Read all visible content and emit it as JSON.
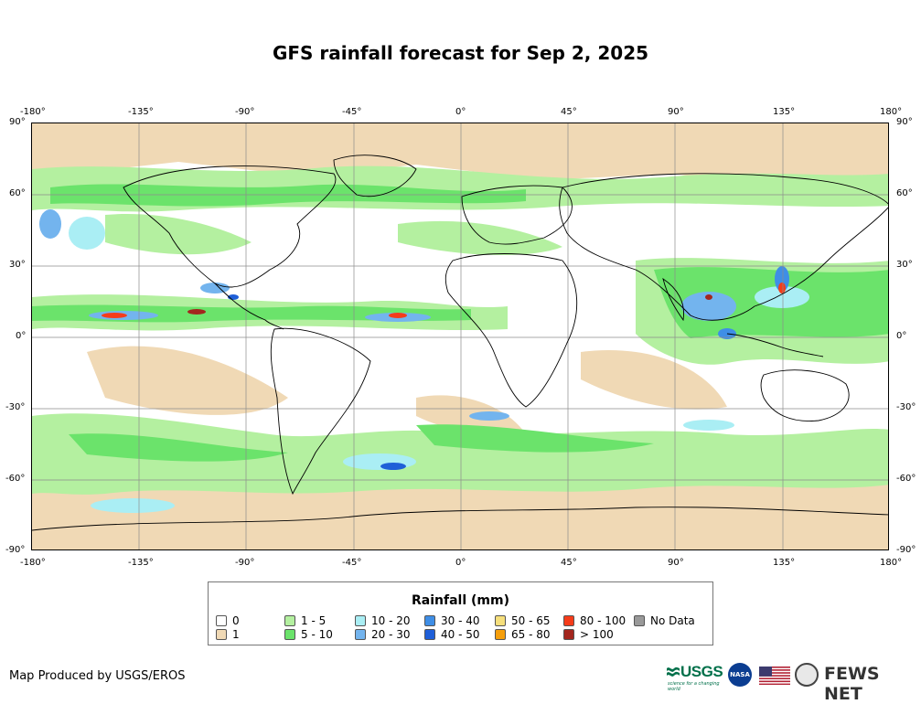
{
  "title": "GFS rainfall forecast for Sep 2, 2025",
  "map": {
    "lon_ticks": [
      "-180°",
      "-135°",
      "-90°",
      "-45°",
      "0°",
      "45°",
      "90°",
      "135°",
      "180°"
    ],
    "lat_ticks": [
      "90°",
      "60°",
      "30°",
      "0°",
      "-30°",
      "-60°",
      "-90°"
    ],
    "extent": {
      "lon": [
        -180,
        180
      ],
      "lat": [
        -90,
        90
      ]
    },
    "graticule_step_deg": 45,
    "graticule_lat_step_deg": 30
  },
  "legend": {
    "title": "Rainfall (mm)",
    "items": [
      {
        "label": "0",
        "color": "#ffffff"
      },
      {
        "label": "1",
        "color": "#f0d9b5"
      },
      {
        "label": "1 - 5",
        "color": "#b4f0a0"
      },
      {
        "label": "5 - 10",
        "color": "#6be36b"
      },
      {
        "label": "10 - 20",
        "color": "#aaeef4"
      },
      {
        "label": "20 - 30",
        "color": "#73b4ee"
      },
      {
        "label": "30 - 40",
        "color": "#3f8ee6"
      },
      {
        "label": "40 - 50",
        "color": "#1f5fd8"
      },
      {
        "label": "50 - 65",
        "color": "#f6df7c"
      },
      {
        "label": "65 - 80",
        "color": "#f59e0b"
      },
      {
        "label": "80 - 100",
        "color": "#f53c1a"
      },
      {
        "label": "> 100",
        "color": "#a3261e"
      },
      {
        "label": "No Data",
        "color": "#999999"
      }
    ]
  },
  "credit": "Map Produced by USGS/EROS",
  "logos": {
    "usgs": "USGS",
    "usgs_tagline": "science for a changing world",
    "nasa": "NASA",
    "fews": "FEWS NET"
  }
}
